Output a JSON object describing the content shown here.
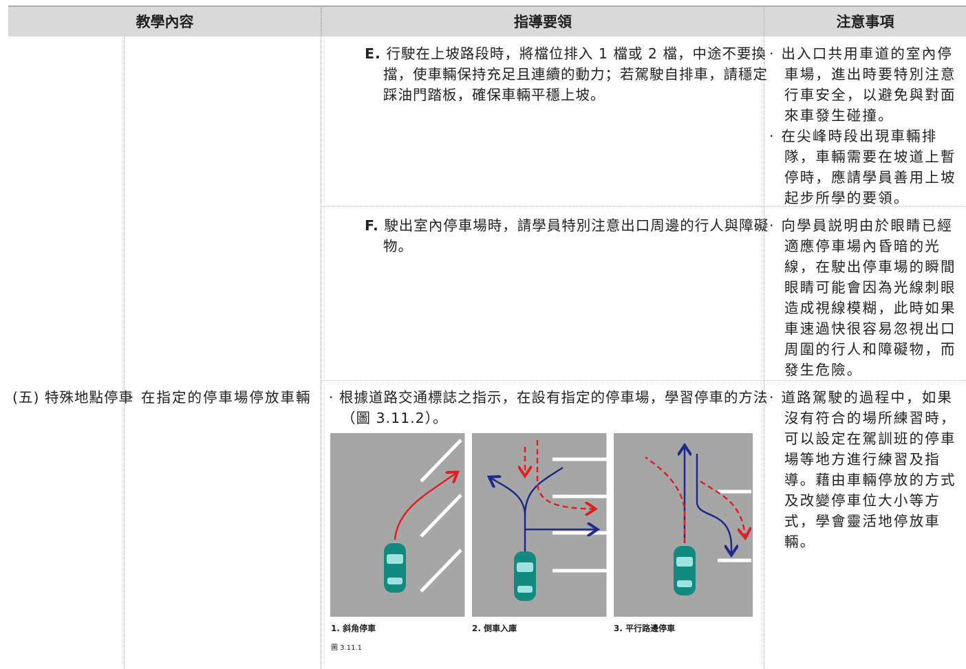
{
  "table": {
    "header": [
      "教學內容",
      "指導要領",
      "注意事項"
    ],
    "rows": [
      {
        "topic": null,
        "item": null,
        "guide": {
          "label": "E.",
          "text": "行駛在上坡路段時，將檔位排入 1 檔或 2 檔，中途不要換擋，使車輛保持充足且連續的動力；若駕駛自排車，請穩定踩油門踏板，確保車輛平穩上坡。"
        },
        "notes": [
          "出入口共用車道的室內停車場，進出時要特別注意行車安全，以避免與對面來車發生碰撞。",
          "在尖峰時段出現車輛排隊，車輛需要在坡道上暫停時，應請學員善用上坡起步所學的要領。"
        ]
      },
      {
        "topic": null,
        "item": null,
        "guide": {
          "label": "F.",
          "text": "駛出室內停車場時，請學員特別注意出口周邊的行人與障礙物。"
        },
        "notes": [
          "向學員説明由於眼睛已經適應停車場內昏暗的光線，在駛出停車場的瞬間眼睛可能會因為光線刺眼造成視線模糊，此時如果車速過快很容易忽視出口周圍的行人和障礙物，而發生危險。"
        ]
      },
      {
        "topic": "(五) 特殊地點停車",
        "item": "在指定的停車場停放車輛",
        "guide": {
          "label": null,
          "text": "根據道路交通標誌之指示，在設有指定的停車場，學習停車的方法（圖 3.11.2）。"
        },
        "notes": [
          "道路駕駛的過程中，如果沒有符合的場所練習時，可以設定在駕訓班的停車場等地方進行練習及指導。藉由車輛停放的方式及改變停車位大小等方式，學會靈活地停放車輛。"
        ]
      }
    ]
  },
  "figure": {
    "captions": [
      "1. 斜角停車",
      "2. 倒車入庫",
      "3. 平行路邊停車"
    ],
    "label": "圖 3.11.1"
  }
}
